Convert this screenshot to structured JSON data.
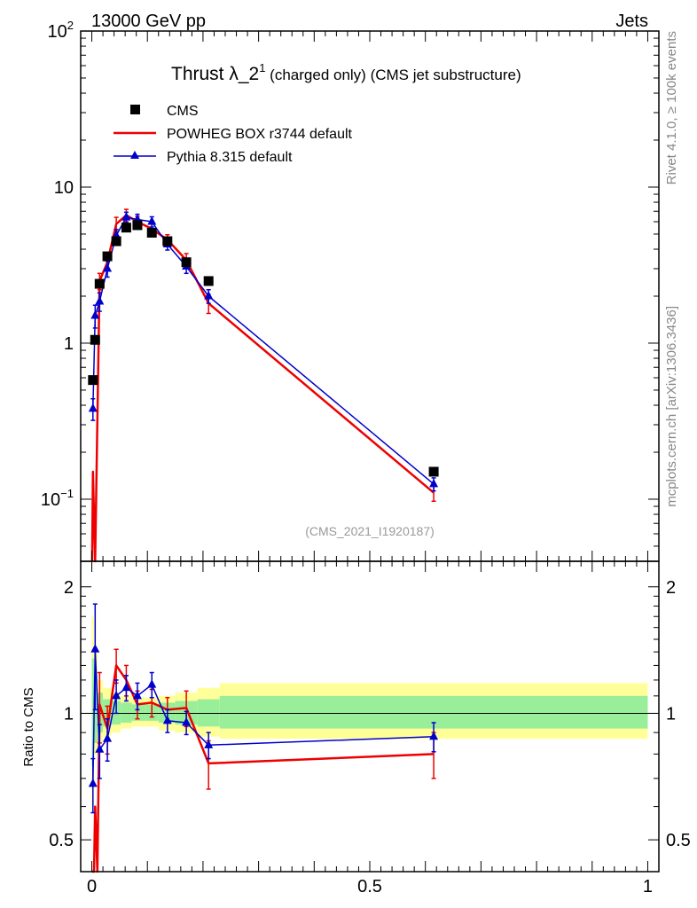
{
  "header": {
    "energy_label": "13000 GeV pp",
    "process_label": "Jets"
  },
  "side_labels": {
    "rivet": "Rivet 4.1.0, ≥ 100k events",
    "source": "mcplots.cern.ch [arXiv:1306.3436]"
  },
  "colors": {
    "data": "#000000",
    "powheg": "#ee0000",
    "pythia": "#0000cc",
    "band_outer": "#ffff99",
    "band_inner": "#99ee99"
  },
  "chart_data": [
    {
      "type": "line",
      "panel": "main",
      "title": "Thrust λ_2",
      "title_sup": "1",
      "title_suffix": " (charged only) (CMS jet substructure)",
      "analysis_tag": "(CMS_2021_I1920187)",
      "xlabel": "",
      "ylabel": "",
      "xlim": [
        -0.02,
        1.02
      ],
      "ylim": [
        0.04,
        100
      ],
      "yscale": "log",
      "y_tick_labels": [
        {
          "value": 100,
          "base": "10",
          "exp": "2"
        },
        {
          "value": 10,
          "base": "10",
          "exp": ""
        },
        {
          "value": 1,
          "base": "1",
          "exp": ""
        },
        {
          "value": 0.1,
          "base": "10",
          "exp": "−1"
        }
      ],
      "legend": [
        {
          "key": "cms",
          "label": "CMS"
        },
        {
          "key": "powheg",
          "label": "POWHEG BOX r3744 default"
        },
        {
          "key": "pythia",
          "label": "Pythia 8.315 default"
        }
      ],
      "series": [
        {
          "name": "CMS",
          "key": "cms",
          "marker": "square",
          "x": [
            0.002,
            0.006,
            0.014,
            0.028,
            0.044,
            0.062,
            0.082,
            0.108,
            0.136,
            0.17,
            0.21,
            0.615
          ],
          "values": [
            0.58,
            1.05,
            2.4,
            3.6,
            4.5,
            5.5,
            5.7,
            5.1,
            4.5,
            3.3,
            2.5,
            0.15
          ]
        },
        {
          "name": "POWHEG BOX r3744 default",
          "key": "powheg",
          "marker": "none",
          "x": [
            0.0005,
            0.002,
            0.006,
            0.014,
            0.028,
            0.044,
            0.062,
            0.082,
            0.108,
            0.136,
            0.17,
            0.21,
            0.615
          ],
          "values": [
            0.04,
            0.15,
            0.04,
            2.5,
            3.3,
            5.8,
            6.6,
            6.0,
            5.4,
            4.6,
            3.4,
            1.8,
            0.11
          ],
          "errors": [
            0,
            0,
            0,
            0.3,
            0.4,
            0.6,
            0.6,
            0.5,
            0.4,
            0.35,
            0.35,
            0.25,
            0.013
          ]
        },
        {
          "name": "Pythia 8.315 default",
          "key": "pythia",
          "marker": "triangle",
          "x": [
            0.002,
            0.006,
            0.014,
            0.028,
            0.044,
            0.062,
            0.082,
            0.108,
            0.136,
            0.17,
            0.21,
            0.615
          ],
          "values": [
            0.38,
            1.5,
            1.85,
            3.0,
            4.9,
            6.4,
            6.2,
            6.0,
            4.3,
            3.1,
            2.0,
            0.125
          ],
          "errors": [
            0.06,
            0.25,
            0.25,
            0.35,
            0.45,
            0.5,
            0.5,
            0.45,
            0.35,
            0.3,
            0.2,
            0.012
          ]
        }
      ]
    },
    {
      "type": "line",
      "panel": "ratio",
      "xlabel": "",
      "ylabel": "Ratio to CMS",
      "xlim": [
        -0.02,
        1.02
      ],
      "ylim": [
        0.42,
        2.3
      ],
      "yscale": "log",
      "x_tick_labels": [
        {
          "value": 0,
          "label": "0"
        },
        {
          "value": 0.5,
          "label": "0.5"
        },
        {
          "value": 1,
          "label": "1"
        }
      ],
      "y_tick_labels": [
        {
          "value": 2,
          "label": "2"
        },
        {
          "value": 1,
          "label": "1"
        },
        {
          "value": 0.5,
          "label": "0.5"
        }
      ],
      "uncertainty_bands": [
        {
          "x0": 0.0,
          "x1": 0.004,
          "outer": [
            0.6,
            1.7
          ],
          "inner": [
            0.75,
            1.35
          ]
        },
        {
          "x0": 0.004,
          "x1": 0.01,
          "outer": [
            0.8,
            1.4
          ],
          "inner": [
            0.85,
            1.25
          ]
        },
        {
          "x0": 0.01,
          "x1": 0.02,
          "outer": [
            0.85,
            1.2
          ],
          "inner": [
            0.9,
            1.12
          ]
        },
        {
          "x0": 0.02,
          "x1": 0.035,
          "outer": [
            0.88,
            1.15
          ],
          "inner": [
            0.93,
            1.08
          ]
        },
        {
          "x0": 0.035,
          "x1": 0.052,
          "outer": [
            0.9,
            1.12
          ],
          "inner": [
            0.94,
            1.07
          ]
        },
        {
          "x0": 0.052,
          "x1": 0.072,
          "outer": [
            0.92,
            1.1
          ],
          "inner": [
            0.95,
            1.06
          ]
        },
        {
          "x0": 0.072,
          "x1": 0.095,
          "outer": [
            0.93,
            1.09
          ],
          "inner": [
            0.96,
            1.05
          ]
        },
        {
          "x0": 0.095,
          "x1": 0.12,
          "outer": [
            0.93,
            1.09
          ],
          "inner": [
            0.96,
            1.05
          ]
        },
        {
          "x0": 0.12,
          "x1": 0.15,
          "outer": [
            0.91,
            1.1
          ],
          "inner": [
            0.95,
            1.06
          ]
        },
        {
          "x0": 0.15,
          "x1": 0.19,
          "outer": [
            0.9,
            1.12
          ],
          "inner": [
            0.94,
            1.07
          ]
        },
        {
          "x0": 0.19,
          "x1": 0.23,
          "outer": [
            0.88,
            1.15
          ],
          "inner": [
            0.93,
            1.08
          ]
        },
        {
          "x0": 0.23,
          "x1": 1.0,
          "outer": [
            0.87,
            1.18
          ],
          "inner": [
            0.92,
            1.1
          ]
        }
      ],
      "series": [
        {
          "name": "POWHEG BOX r3744 default",
          "key": "powheg",
          "marker": "none",
          "x": [
            0.0005,
            0.004,
            0.006,
            0.01,
            0.014,
            0.028,
            0.044,
            0.062,
            0.082,
            0.108,
            0.136,
            0.17,
            0.21,
            0.615
          ],
          "values": [
            0.4,
            0.4,
            0.6,
            0.4,
            1.05,
            0.92,
            1.3,
            1.2,
            1.05,
            1.06,
            1.02,
            1.03,
            0.76,
            0.8
          ],
          "errors": [
            0,
            0,
            0,
            0,
            0.2,
            0.12,
            0.12,
            0.1,
            0.08,
            0.08,
            0.07,
            0.1,
            0.1,
            0.1
          ]
        },
        {
          "name": "Pythia 8.315 default",
          "key": "pythia",
          "marker": "triangle",
          "x": [
            0.002,
            0.006,
            0.014,
            0.028,
            0.044,
            0.062,
            0.082,
            0.108,
            0.136,
            0.17,
            0.21,
            0.615
          ],
          "values": [
            0.68,
            1.42,
            0.82,
            0.87,
            1.1,
            1.15,
            1.1,
            1.17,
            0.96,
            0.95,
            0.84,
            0.88
          ],
          "errors": [
            0.1,
            0.4,
            0.12,
            0.1,
            0.1,
            0.08,
            0.08,
            0.08,
            0.06,
            0.06,
            0.06,
            0.07
          ]
        }
      ]
    }
  ]
}
